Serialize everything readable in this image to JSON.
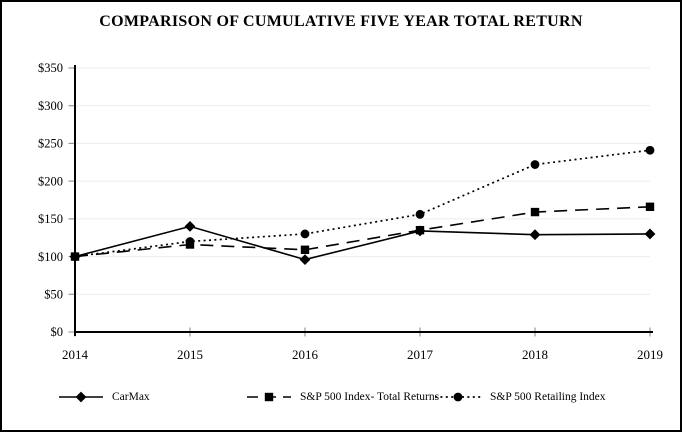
{
  "chart_data": {
    "type": "line",
    "title": "COMPARISON OF CUMULATIVE FIVE YEAR TOTAL RETURN",
    "categories": [
      "2014",
      "2015",
      "2016",
      "2017",
      "2018",
      "2019"
    ],
    "series": [
      {
        "name": "CarMax",
        "marker": "diamond",
        "line_style": "solid",
        "color": "#000000",
        "values": [
          100,
          140,
          96,
          134,
          129,
          130
        ]
      },
      {
        "name": "S&P 500 Index- Total Returns",
        "marker": "square",
        "line_style": "dashed",
        "color": "#000000",
        "values": [
          100,
          116,
          109,
          135,
          159,
          166
        ]
      },
      {
        "name": "S&P 500 Retailing Index",
        "marker": "circle",
        "line_style": "dotted",
        "color": "#000000",
        "values": [
          100,
          120,
          130,
          156,
          222,
          241
        ]
      }
    ],
    "xlabel": "",
    "ylabel": "",
    "ylim": [
      0,
      350
    ],
    "ytick_step": 50,
    "ytick_labels": [
      "$0",
      "$50",
      "$100",
      "$150",
      "$200",
      "$250",
      "$300",
      "$350"
    ],
    "grid": true,
    "gridline_color": "#ececec",
    "axis_color": "#000000",
    "tick_color": "#999999",
    "text_color": "#000000",
    "legend_position": "bottom"
  }
}
